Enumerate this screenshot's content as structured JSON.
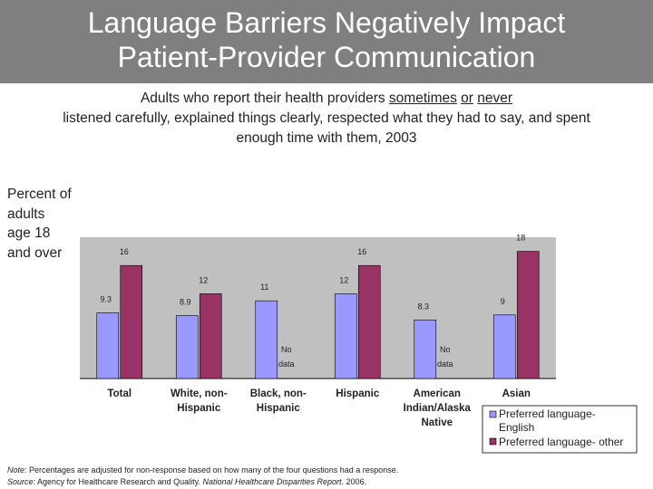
{
  "title": {
    "line1": "Language Barriers Negatively Impact",
    "line2": "Patient-Provider Communication"
  },
  "subtitle": {
    "lead": "Adults who report their health providers ",
    "u1": "sometimes",
    "mid": " ",
    "u2": "or",
    "mid2": " ",
    "u3": "never",
    "line2": "listened carefully, explained things clearly, respected what they had to say, and spent",
    "line3": "enough time with them,  2003"
  },
  "y_axis_label": [
    "Percent of",
    "adults",
    "age 18",
    "and over"
  ],
  "colors": {
    "title_bg": "#7f7f7f",
    "series_english": "#9999ff",
    "series_other": "#993366",
    "plot_bg": "#c0c0c0"
  },
  "chart_data": {
    "type": "bar",
    "title": "",
    "xlabel": "",
    "ylabel": "Percent of adults age 18 and over",
    "ylim": [
      0,
      20
    ],
    "categories": [
      [
        "Total"
      ],
      [
        "White, non-",
        "Hispanic"
      ],
      [
        "Black, non-",
        "Hispanic"
      ],
      [
        "Hispanic"
      ],
      [
        "American",
        "Indian/Alaska",
        "Native"
      ],
      [
        "Asian"
      ]
    ],
    "series": [
      {
        "name": "Preferred language-English",
        "legend_lines": [
          "Preferred language-",
          "English"
        ],
        "values": [
          9.3,
          8.9,
          11,
          12,
          8.3,
          9
        ],
        "labels": [
          "9.3",
          "8.9",
          "11",
          "12",
          "8.3",
          "9"
        ]
      },
      {
        "name": "Preferred language- other",
        "legend_lines": [
          "Preferred language- other"
        ],
        "values": [
          16,
          12,
          null,
          16,
          null,
          18
        ],
        "labels": [
          "16",
          "12",
          "",
          "16",
          "",
          "18"
        ]
      }
    ],
    "no_data_label": [
      "No",
      "data"
    ],
    "legend_position": "bottom-right"
  },
  "note": {
    "note_prefix": "Note:",
    "note_text": "  Percentages are adjusted for non-response based on how many of the four questions had a response.",
    "source_prefix": "Source:",
    "source_text": " Agency for Healthcare Research and Quality. ",
    "source_italic": "National Healthcare Disparities Report",
    "source_end": ". 2006."
  }
}
